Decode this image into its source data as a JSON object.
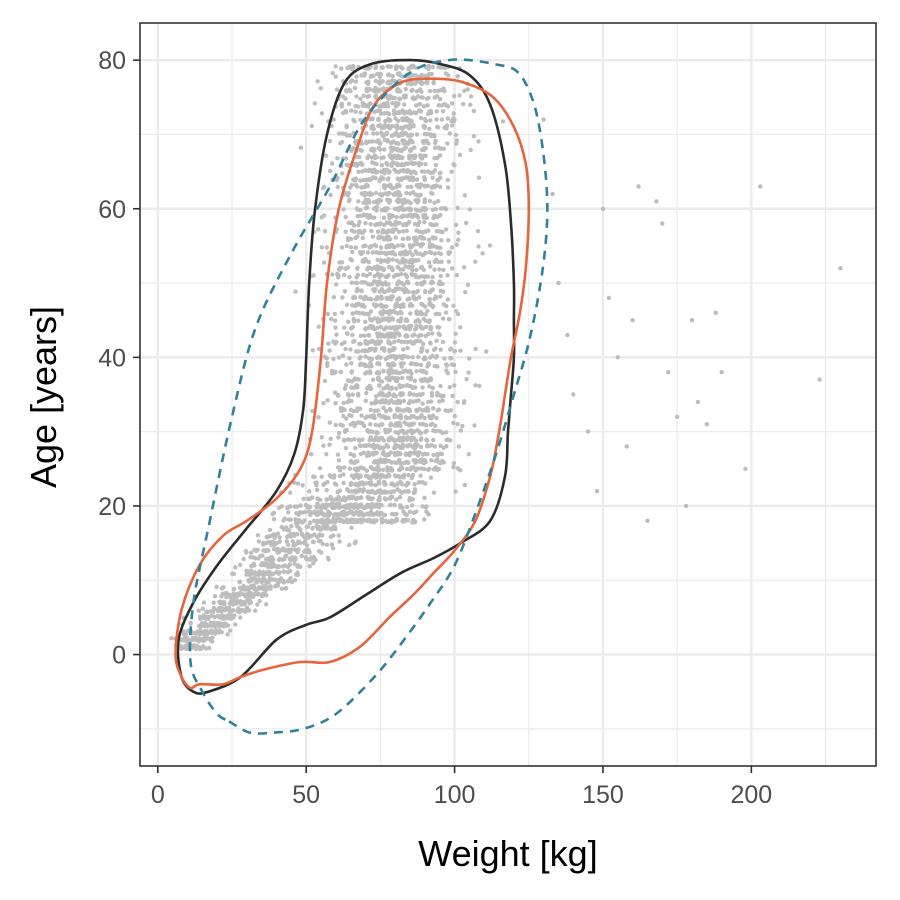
{
  "chart_data": {
    "type": "scatter",
    "title": "",
    "xlabel": "Weight [kg]",
    "ylabel": "Age [years]",
    "xlim": [
      -6,
      242
    ],
    "ylim": [
      -15,
      85
    ],
    "x_ticks": [
      0,
      50,
      100,
      150,
      200
    ],
    "y_ticks": [
      0,
      20,
      40,
      60,
      80
    ],
    "x_tick_labels": [
      "0",
      "50",
      "100",
      "150",
      "200"
    ],
    "y_tick_labels": [
      "0",
      "20",
      "40",
      "60",
      "80"
    ],
    "grid": true,
    "legend": "none",
    "colors": {
      "points": "#bdbdbd",
      "contour_black": "#2b2b2b",
      "contour_orange": "#e8643a",
      "contour_blue": "#2f8299",
      "grid": "#ebebeb",
      "panel_border": "#333333"
    },
    "scatter_summary": {
      "description": "dense cloud of individual observations, age vs weight",
      "main_cloud": {
        "age_min": 1,
        "age_max": 79,
        "weight_center_range": [
          20,
          125
        ]
      },
      "young_ramp": [
        [
          10,
          2
        ],
        [
          20,
          6
        ],
        [
          30,
          10
        ],
        [
          40,
          14
        ],
        [
          50,
          18
        ],
        [
          60,
          22
        ]
      ],
      "outliers": [
        [
          130,
          72
        ],
        [
          133,
          62
        ],
        [
          135,
          50
        ],
        [
          138,
          43
        ],
        [
          140,
          35
        ],
        [
          145,
          30
        ],
        [
          148,
          22
        ],
        [
          150,
          60
        ],
        [
          152,
          48
        ],
        [
          155,
          40
        ],
        [
          158,
          28
        ],
        [
          160,
          45
        ],
        [
          162,
          63
        ],
        [
          165,
          18
        ],
        [
          168,
          61
        ],
        [
          170,
          58
        ],
        [
          172,
          38
        ],
        [
          175,
          32
        ],
        [
          178,
          20
        ],
        [
          180,
          45
        ],
        [
          182,
          34
        ],
        [
          185,
          31
        ],
        [
          188,
          46
        ],
        [
          190,
          38
        ],
        [
          198,
          25
        ],
        [
          203,
          63
        ],
        [
          223,
          37
        ],
        [
          230,
          52
        ]
      ]
    },
    "series": [
      {
        "name": "black-contour",
        "style": "solid",
        "points": [
          [
            17,
            -5
          ],
          [
            28,
            -3
          ],
          [
            40,
            2
          ],
          [
            50,
            4
          ],
          [
            58,
            5
          ],
          [
            70,
            8
          ],
          [
            82,
            11
          ],
          [
            93,
            13
          ],
          [
            102,
            15
          ],
          [
            112,
            18
          ],
          [
            117,
            24
          ],
          [
            118,
            30
          ],
          [
            119,
            35
          ],
          [
            120,
            40
          ],
          [
            120,
            45
          ],
          [
            120,
            50
          ],
          [
            119,
            58
          ],
          [
            117,
            66
          ],
          [
            112,
            74
          ],
          [
            105,
            78
          ],
          [
            95,
            79.5
          ],
          [
            85,
            80
          ],
          [
            72,
            79.5
          ],
          [
            63,
            77
          ],
          [
            57,
            70
          ],
          [
            53,
            60
          ],
          [
            51,
            50
          ],
          [
            50,
            40
          ],
          [
            49,
            33
          ],
          [
            46,
            27
          ],
          [
            40,
            22
          ],
          [
            30,
            17
          ],
          [
            20,
            12
          ],
          [
            12,
            7
          ],
          [
            7,
            2
          ],
          [
            8,
            -3
          ],
          [
            12,
            -5
          ]
        ]
      },
      {
        "name": "orange-contour",
        "style": "solid",
        "points": [
          [
            14,
            -4
          ],
          [
            22,
            -4
          ],
          [
            28,
            -3
          ],
          [
            36,
            -2
          ],
          [
            48,
            -1
          ],
          [
            58,
            -1
          ],
          [
            68,
            1
          ],
          [
            78,
            5
          ],
          [
            86,
            8
          ],
          [
            93,
            11
          ],
          [
            100,
            14
          ],
          [
            107,
            18
          ],
          [
            112,
            24
          ],
          [
            115,
            30
          ],
          [
            117,
            35
          ],
          [
            119,
            40
          ],
          [
            122,
            46
          ],
          [
            124,
            52
          ],
          [
            125,
            60
          ],
          [
            124,
            66
          ],
          [
            120,
            71
          ],
          [
            113,
            75
          ],
          [
            103,
            77
          ],
          [
            93,
            77.5
          ],
          [
            82,
            77
          ],
          [
            73,
            74
          ],
          [
            67,
            68
          ],
          [
            61,
            60
          ],
          [
            57,
            50
          ],
          [
            55,
            40
          ],
          [
            52,
            30
          ],
          [
            48,
            25
          ],
          [
            40,
            21
          ],
          [
            30,
            18
          ],
          [
            22,
            16
          ],
          [
            14,
            12
          ],
          [
            8,
            6
          ],
          [
            6,
            0
          ],
          [
            8,
            -3
          ],
          [
            11,
            -4.5
          ]
        ]
      },
      {
        "name": "blue-dashed-contour",
        "style": "dashed",
        "points": [
          [
            24,
            -9
          ],
          [
            31,
            -10.5
          ],
          [
            39,
            -10.5
          ],
          [
            49,
            -10
          ],
          [
            60,
            -8
          ],
          [
            73,
            -3
          ],
          [
            83,
            2
          ],
          [
            92,
            7
          ],
          [
            100,
            12
          ],
          [
            107,
            19
          ],
          [
            114,
            27
          ],
          [
            120,
            35
          ],
          [
            125,
            42
          ],
          [
            129,
            50
          ],
          [
            131,
            57
          ],
          [
            131,
            63
          ],
          [
            129,
            70
          ],
          [
            126,
            75
          ],
          [
            121,
            78.5
          ],
          [
            113,
            79.5
          ],
          [
            105,
            80
          ],
          [
            98,
            80
          ],
          [
            88,
            79
          ],
          [
            78,
            76
          ],
          [
            68,
            71
          ],
          [
            58,
            63
          ],
          [
            45,
            54
          ],
          [
            33,
            44
          ],
          [
            25,
            32
          ],
          [
            17,
            17
          ],
          [
            12,
            7
          ],
          [
            11,
            -1
          ],
          [
            15,
            -5
          ],
          [
            20,
            -8
          ]
        ]
      }
    ]
  }
}
